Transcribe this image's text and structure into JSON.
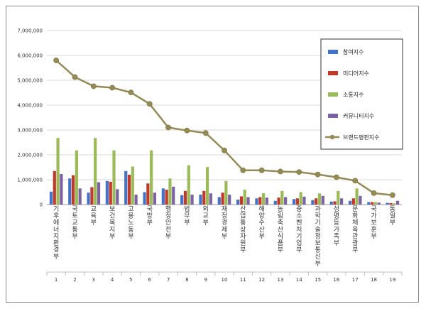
{
  "chart_data": {
    "type": "bar",
    "title": "",
    "xlabel": "",
    "ylabel": "",
    "ylim": [
      0,
      7000000
    ],
    "yticks": [
      0,
      1000000,
      2000000,
      3000000,
      4000000,
      5000000,
      6000000,
      7000000
    ],
    "ytick_labels": [
      "0",
      "1,000,000",
      "2,000,000",
      "3,000,000",
      "4,000,000",
      "5,000,000",
      "6,000,000",
      "7,000,000"
    ],
    "grid": true,
    "legend_position": "right",
    "indices": [
      "1",
      "2",
      "3",
      "4",
      "5",
      "6",
      "7",
      "8",
      "9",
      "10",
      "11",
      "12",
      "13",
      "14",
      "15",
      "16",
      "17",
      "18",
      "19"
    ],
    "categories": [
      "기후에너지환경부",
      "국토교통부",
      "교육부",
      "보건복지부",
      "고용노동부",
      "국방부",
      "행정안전부",
      "법무부",
      "외교부",
      "재정경제부",
      "산업통상자원부",
      "해양수산부",
      "농림축산식품부",
      "중소벤처기업부",
      "과학기술정보통신부",
      "성평등가족부",
      "문화체육관광부",
      "국가보훈부",
      "통일부"
    ],
    "series": [
      {
        "name": "참여지수",
        "type": "bar",
        "color": "#4472c4",
        "values": [
          520000,
          1050000,
          480000,
          950000,
          1350000,
          500000,
          650000,
          380000,
          400000,
          300000,
          200000,
          250000,
          150000,
          220000,
          180000,
          120000,
          150000,
          100000,
          70000
        ]
      },
      {
        "name": "미디어지수",
        "type": "bar",
        "color": "#c0392b",
        "values": [
          1350000,
          1180000,
          700000,
          920000,
          1200000,
          850000,
          600000,
          550000,
          550000,
          480000,
          330000,
          300000,
          280000,
          250000,
          250000,
          130000,
          250000,
          100000,
          60000
        ]
      },
      {
        "name": "소통지수",
        "type": "bar",
        "color": "#9bbb59",
        "values": [
          2680000,
          2180000,
          2680000,
          2180000,
          1530000,
          2180000,
          1050000,
          1580000,
          1510000,
          950000,
          600000,
          460000,
          550000,
          500000,
          450000,
          550000,
          650000,
          100000,
          50000
        ]
      },
      {
        "name": "커뮤니티지수",
        "type": "bar",
        "color": "#7b62a3",
        "values": [
          1230000,
          650000,
          900000,
          620000,
          400000,
          480000,
          720000,
          400000,
          450000,
          400000,
          300000,
          280000,
          300000,
          320000,
          350000,
          250000,
          350000,
          80000,
          150000
        ]
      },
      {
        "name": "브랜드평판지수",
        "type": "line",
        "color": "#948a54",
        "values": [
          5800000,
          5130000,
          4760000,
          4700000,
          4510000,
          4050000,
          3100000,
          2980000,
          2880000,
          2180000,
          1380000,
          1380000,
          1330000,
          1310000,
          1210000,
          1100000,
          960000,
          460000,
          380000
        ]
      }
    ]
  }
}
